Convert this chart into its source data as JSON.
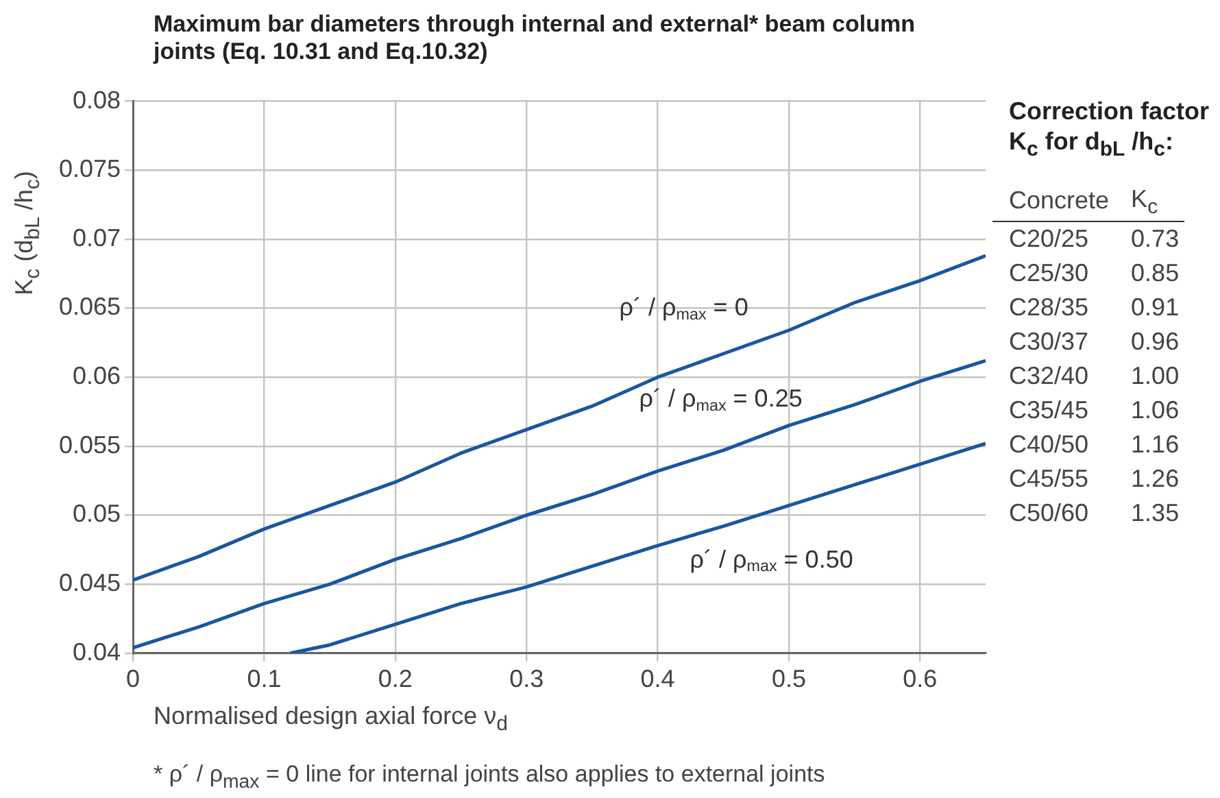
{
  "chart_data": [
    {
      "type": "line",
      "title": "Maximum bar diameters through internal and external* beam column joints (Eq. 10.31 and Eq.10.32)",
      "xlabel": "Normalised design axial force ν$_{d}$",
      "ylabel": "K$_{c}$ (d$_{bL}$ /h$_{c}$)",
      "x": [
        0,
        0.05,
        0.1,
        0.15,
        0.2,
        0.25,
        0.3,
        0.35,
        0.4,
        0.45,
        0.5,
        0.55,
        0.6,
        0.65
      ],
      "series": [
        {
          "name": "ρ´ / ρ$_{max}$ = 0",
          "color": "#1a56a0",
          "values": [
            0.0453,
            0.047,
            0.049,
            0.0507,
            0.0524,
            0.0545,
            0.0562,
            0.0579,
            0.06,
            0.0617,
            0.0634,
            0.0654,
            0.067,
            0.0688
          ]
        },
        {
          "name": "ρ´ / ρ$_{max}$ = 0.25",
          "color": "#1a56a0",
          "values": [
            0.0404,
            0.0419,
            0.0436,
            0.045,
            0.0468,
            0.0483,
            0.05,
            0.0515,
            0.0532,
            0.0547,
            0.0565,
            0.058,
            0.0597,
            0.0612
          ]
        },
        {
          "name": "ρ´ / ρ$_{max}$ = 0.50",
          "color": "#1a56a0",
          "x": [
            0.12,
            0.15,
            0.2,
            0.25,
            0.3,
            0.35,
            0.4,
            0.45,
            0.5,
            0.55,
            0.6,
            0.65
          ],
          "values": [
            0.04,
            0.0406,
            0.0421,
            0.0436,
            0.0448,
            0.0463,
            0.0478,
            0.0492,
            0.0507,
            0.0522,
            0.0537,
            0.0552
          ]
        }
      ],
      "xlim": [
        0,
        0.65
      ],
      "xticks": [
        0,
        0.1,
        0.2,
        0.3,
        0.4,
        0.5,
        0.6
      ],
      "ylim": [
        0.04,
        0.08
      ],
      "yticks": [
        0.04,
        0.045,
        0.05,
        0.055,
        0.06,
        0.065,
        0.07,
        0.075,
        0.08
      ],
      "grid": true,
      "legend": false,
      "marker": "none",
      "line_style": "solid",
      "annotations": [
        "* ρ´ / ρ$_{max}$ = 0 line for internal joints also applies to external joints"
      ]
    },
    {
      "type": "other",
      "title": "Correction factor K$_{c}$ for d$_{bL}$ /h$_{c}$:",
      "xlabel": "Concrete",
      "ylabel": "K$_{c}$",
      "categories": [
        "C20/25",
        "C25/30",
        "C28/35",
        "C30/37",
        "C32/40",
        "C35/45",
        "C40/50",
        "C45/55",
        "C50/60"
      ],
      "values": [
        0.73,
        0.85,
        0.91,
        0.96,
        1,
        1.06,
        1.16,
        1.26,
        1.35
      ],
      "value_labels": [
        "0.73",
        "0.85",
        "0.91",
        "0.96",
        "1.00",
        "1.06",
        "1.16",
        "1.26",
        "1.35"
      ]
    }
  ]
}
